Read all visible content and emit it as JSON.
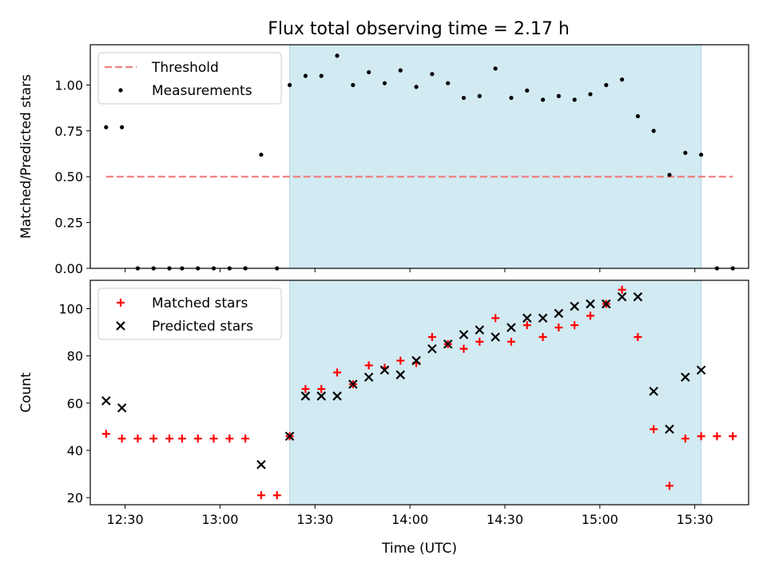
{
  "figure": {
    "title": "Flux total observing time = 2.17 h"
  },
  "chart_data": [
    {
      "type": "scatter",
      "ylabel": "Matched/Predicted stars",
      "xlim": [
        "12:19",
        "15:47"
      ],
      "ylim": [
        0,
        1.22
      ],
      "yticks": [
        {
          "value": 0.0,
          "label": "0.00"
        },
        {
          "value": 0.25,
          "label": "0.25"
        },
        {
          "value": 0.5,
          "label": "0.50"
        },
        {
          "value": 0.75,
          "label": "0.75"
        },
        {
          "value": 1.0,
          "label": "1.00"
        }
      ],
      "shaded_interval": {
        "start": "13:22",
        "end": "15:32",
        "color": "#add8e6"
      },
      "threshold": {
        "name": "Threshold",
        "value": 0.5,
        "x_range": [
          "12:24",
          "15:42"
        ],
        "color": "#f08080"
      },
      "legend": {
        "position": "top-left",
        "entries": [
          "Threshold",
          "Measurements"
        ]
      },
      "series": [
        {
          "name": "Measurements",
          "marker": "dot",
          "color": "#000000",
          "x": [
            "12:24",
            "12:29",
            "12:34",
            "12:39",
            "12:44",
            "12:48",
            "12:53",
            "12:58",
            "13:03",
            "13:08",
            "13:13",
            "13:18",
            "13:22",
            "13:27",
            "13:32",
            "13:37",
            "13:42",
            "13:47",
            "13:52",
            "13:57",
            "14:02",
            "14:07",
            "14:12",
            "14:17",
            "14:22",
            "14:27",
            "14:32",
            "14:37",
            "14:42",
            "14:47",
            "14:52",
            "14:57",
            "15:02",
            "15:07",
            "15:12",
            "15:17",
            "15:22",
            "15:27",
            "15:32",
            "15:37",
            "15:42"
          ],
          "y": [
            0.77,
            0.77,
            0,
            0,
            0,
            0,
            0,
            0,
            0,
            0,
            0.62,
            0,
            1.0,
            1.05,
            1.05,
            1.16,
            1.0,
            1.07,
            1.01,
            1.08,
            0.99,
            1.06,
            1.01,
            0.93,
            0.94,
            1.09,
            0.93,
            0.97,
            0.92,
            0.94,
            0.92,
            0.95,
            1.0,
            1.03,
            0.83,
            0.75,
            0.51,
            0.63,
            0.62,
            0,
            0
          ]
        }
      ]
    },
    {
      "type": "scatter",
      "xlabel": "Time (UTC)",
      "ylabel": "Count",
      "xlim": [
        "12:19",
        "15:47"
      ],
      "ylim": [
        17,
        112
      ],
      "xticks": [
        "12:30",
        "13:00",
        "13:30",
        "14:00",
        "14:30",
        "15:00",
        "15:30"
      ],
      "yticks": [
        {
          "value": 20,
          "label": "20"
        },
        {
          "value": 40,
          "label": "40"
        },
        {
          "value": 60,
          "label": "60"
        },
        {
          "value": 80,
          "label": "80"
        },
        {
          "value": 100,
          "label": "100"
        }
      ],
      "shaded_interval": {
        "start": "13:22",
        "end": "15:32",
        "color": "#add8e6"
      },
      "legend": {
        "position": "top-left",
        "entries": [
          "Matched stars",
          "Predicted stars"
        ]
      },
      "series": [
        {
          "name": "Matched stars",
          "marker": "plus",
          "color": "#ff0000",
          "x": [
            "12:24",
            "12:29",
            "12:34",
            "12:39",
            "12:44",
            "12:48",
            "12:53",
            "12:58",
            "13:03",
            "13:08",
            "13:13",
            "13:18",
            "13:22",
            "13:27",
            "13:32",
            "13:37",
            "13:42",
            "13:47",
            "13:52",
            "13:57",
            "14:02",
            "14:07",
            "14:12",
            "14:17",
            "14:22",
            "14:27",
            "14:32",
            "14:37",
            "14:42",
            "14:47",
            "14:52",
            "14:57",
            "15:02",
            "15:07",
            "15:12",
            "15:17",
            "15:22",
            "15:27",
            "15:32",
            "15:37",
            "15:42"
          ],
          "y": [
            47,
            45,
            45,
            45,
            45,
            45,
            45,
            45,
            45,
            45,
            21,
            21,
            46,
            66,
            66,
            73,
            68,
            76,
            75,
            78,
            77,
            88,
            85,
            83,
            86,
            96,
            86,
            93,
            88,
            92,
            93,
            97,
            102,
            108,
            88,
            49,
            25,
            45,
            46,
            46,
            46
          ]
        },
        {
          "name": "Predicted stars",
          "marker": "x",
          "color": "#000000",
          "x": [
            "12:24",
            "12:29",
            "13:13",
            "13:22",
            "13:27",
            "13:32",
            "13:37",
            "13:42",
            "13:47",
            "13:52",
            "13:57",
            "14:02",
            "14:07",
            "14:12",
            "14:17",
            "14:22",
            "14:27",
            "14:32",
            "14:37",
            "14:42",
            "14:47",
            "14:52",
            "14:57",
            "15:02",
            "15:07",
            "15:12",
            "15:17",
            "15:22",
            "15:27",
            "15:32"
          ],
          "y": [
            61,
            58,
            34,
            46,
            63,
            63,
            63,
            68,
            71,
            74,
            72,
            78,
            83,
            85,
            89,
            91,
            88,
            92,
            96,
            96,
            98,
            101,
            102,
            102,
            105,
            105,
            65,
            49,
            71,
            74
          ]
        }
      ]
    }
  ]
}
